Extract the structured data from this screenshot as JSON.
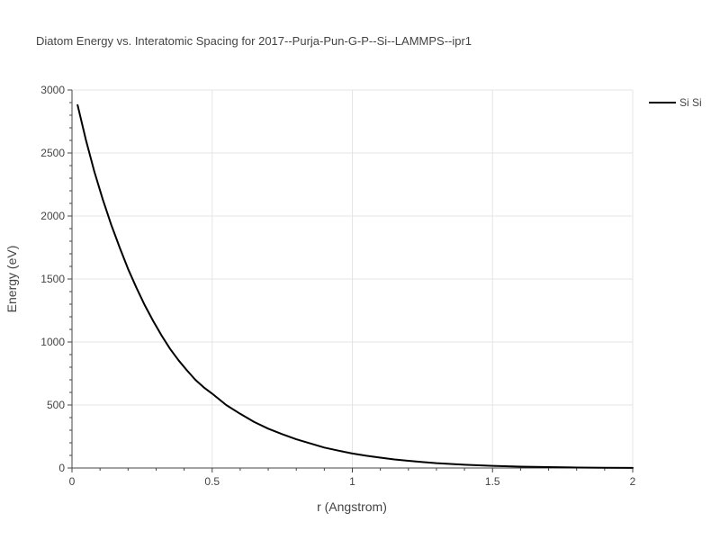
{
  "chart_data": {
    "type": "line",
    "title": "Diatom Energy vs. Interatomic Spacing for 2017--Purja-Pun-G-P--Si--LAMMPS--ipr1",
    "xlabel": "r (Angstrom)",
    "ylabel": "Energy (eV)",
    "xlim": [
      0,
      2
    ],
    "ylim": [
      0,
      3000
    ],
    "x_ticks": [
      {
        "value": 0,
        "label": "0"
      },
      {
        "value": 0.5,
        "label": "0.5"
      },
      {
        "value": 1,
        "label": "1"
      },
      {
        "value": 1.5,
        "label": "1.5"
      },
      {
        "value": 2,
        "label": "2"
      }
    ],
    "y_ticks": [
      {
        "value": 0,
        "label": "0"
      },
      {
        "value": 500,
        "label": "500"
      },
      {
        "value": 1000,
        "label": "1000"
      },
      {
        "value": 1500,
        "label": "1500"
      },
      {
        "value": 2000,
        "label": "2000"
      },
      {
        "value": 2500,
        "label": "2500"
      },
      {
        "value": 3000,
        "label": "3000"
      }
    ],
    "grid": true,
    "legend": {
      "placement": "top-right"
    },
    "series": [
      {
        "name": "Si Si",
        "color": "#000000",
        "x": [
          0.02,
          0.05,
          0.08,
          0.11,
          0.14,
          0.17,
          0.2,
          0.23,
          0.26,
          0.29,
          0.32,
          0.35,
          0.38,
          0.41,
          0.44,
          0.47,
          0.5,
          0.55,
          0.6,
          0.65,
          0.7,
          0.75,
          0.8,
          0.85,
          0.9,
          0.95,
          1.0,
          1.05,
          1.1,
          1.15,
          1.2,
          1.25,
          1.3,
          1.35,
          1.4,
          1.45,
          1.5,
          1.6,
          1.7,
          1.8,
          1.9,
          2.0
        ],
        "y": [
          2880,
          2600,
          2350,
          2130,
          1930,
          1750,
          1580,
          1430,
          1290,
          1165,
          1050,
          945,
          855,
          775,
          700,
          640,
          590,
          500,
          430,
          365,
          312,
          268,
          228,
          195,
          162,
          138,
          115,
          97,
          82,
          68,
          57,
          47,
          38,
          32,
          26,
          21,
          17,
          11,
          7,
          4,
          2,
          1
        ]
      }
    ]
  }
}
